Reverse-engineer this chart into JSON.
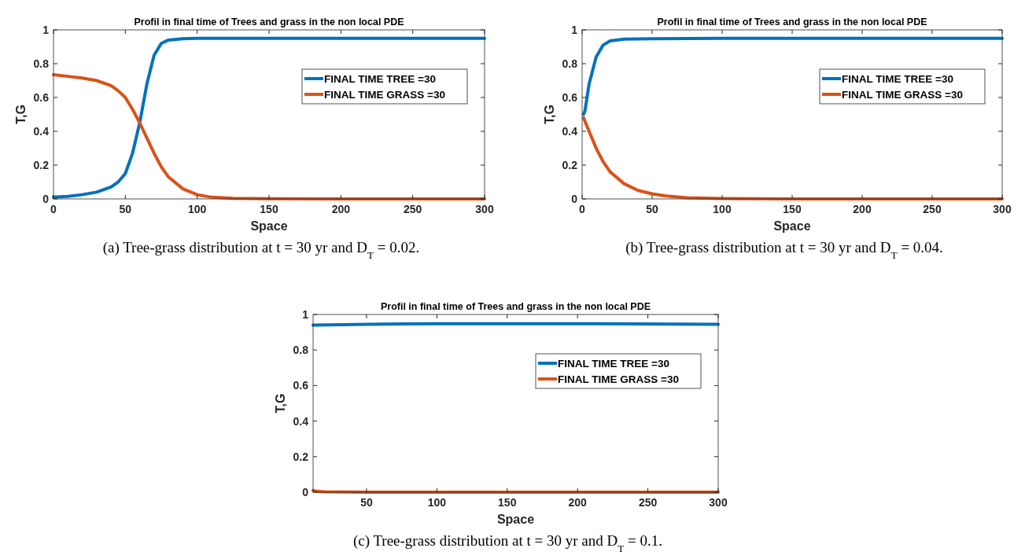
{
  "chart_data": [
    {
      "type": "line",
      "title": "Profil in final time of Trees and grass in the non local PDE",
      "xlabel": "Space",
      "ylabel": "T,G",
      "xlim": [
        0,
        300
      ],
      "ylim": [
        0,
        1
      ],
      "xticks": [
        0,
        50,
        100,
        150,
        200,
        250,
        300
      ],
      "yticks": [
        0,
        0.2,
        0.4,
        0.6,
        0.8,
        1
      ],
      "legend": "top right",
      "annotations": [
        "(a) Tree-grass distribution at t = 30 yr and D$_{T}$ = 0.02."
      ],
      "series": [
        {
          "name": "FINAL TIME TREE =30",
          "color": "#0072bd",
          "x": [
            0,
            10,
            20,
            30,
            40,
            45,
            50,
            55,
            60,
            65,
            70,
            75,
            80,
            90,
            100,
            150,
            200,
            250,
            300
          ],
          "values": [
            0.01,
            0.015,
            0.025,
            0.04,
            0.07,
            0.1,
            0.15,
            0.27,
            0.45,
            0.68,
            0.85,
            0.92,
            0.94,
            0.948,
            0.95,
            0.95,
            0.95,
            0.95,
            0.95
          ]
        },
        {
          "name": "FINAL TIME GRASS =30",
          "color": "#d95319",
          "x": [
            0,
            10,
            20,
            30,
            40,
            45,
            50,
            55,
            60,
            65,
            70,
            75,
            80,
            90,
            100,
            110,
            125,
            150,
            200,
            300
          ],
          "values": [
            0.735,
            0.725,
            0.715,
            0.7,
            0.67,
            0.64,
            0.6,
            0.53,
            0.45,
            0.36,
            0.27,
            0.19,
            0.13,
            0.06,
            0.025,
            0.01,
            0.004,
            0.001,
            0,
            0
          ]
        }
      ]
    },
    {
      "type": "line",
      "title": "Profil in final time of Trees and grass in the non local PDE",
      "xlabel": "Space",
      "ylabel": "T,G",
      "xlim": [
        0,
        300
      ],
      "ylim": [
        0,
        1
      ],
      "xticks": [
        0,
        50,
        100,
        150,
        200,
        250,
        300
      ],
      "yticks": [
        0,
        0.2,
        0.4,
        0.6,
        0.8,
        1
      ],
      "legend": "top right",
      "annotations": [
        "(b) Tree-grass distribution at t = 30 yr and D$_{T}$ = 0.04."
      ],
      "series": [
        {
          "name": "FINAL TIME TREE =30",
          "color": "#0072bd",
          "x": [
            1,
            2,
            5,
            10,
            15,
            20,
            30,
            50,
            100,
            200,
            300
          ],
          "values": [
            0.5,
            0.52,
            0.68,
            0.84,
            0.91,
            0.935,
            0.945,
            0.948,
            0.95,
            0.95,
            0.95
          ]
        },
        {
          "name": "FINAL TIME GRASS =30",
          "color": "#d95319",
          "x": [
            1,
            5,
            10,
            15,
            20,
            30,
            40,
            50,
            60,
            75,
            100,
            150,
            300
          ],
          "values": [
            0.48,
            0.4,
            0.3,
            0.22,
            0.16,
            0.09,
            0.05,
            0.03,
            0.017,
            0.007,
            0.002,
            0,
            0
          ]
        }
      ]
    },
    {
      "type": "line",
      "title": "Profil in final time of Trees and grass in the non local PDE",
      "xlabel": "Space",
      "ylabel": "T,G",
      "xlim": [
        12,
        300
      ],
      "ylim": [
        0,
        1
      ],
      "xticks": [
        50,
        100,
        150,
        200,
        250,
        300
      ],
      "yticks": [
        0,
        0.2,
        0.4,
        0.6,
        0.8,
        1
      ],
      "legend": "top right",
      "annotations": [
        "(c) Tree-grass distribution at t = 30 yr and D$_{T}$ = 0.1."
      ],
      "series": [
        {
          "name": "FINAL TIME TREE =30",
          "color": "#0072bd",
          "x": [
            12,
            50,
            100,
            200,
            300
          ],
          "values": [
            0.94,
            0.945,
            0.948,
            0.948,
            0.945
          ]
        },
        {
          "name": "FINAL TIME GRASS =30",
          "color": "#d95319",
          "x": [
            12,
            15,
            20,
            50,
            300
          ],
          "values": [
            0.01,
            0.004,
            0.002,
            0,
            0
          ]
        }
      ]
    }
  ]
}
